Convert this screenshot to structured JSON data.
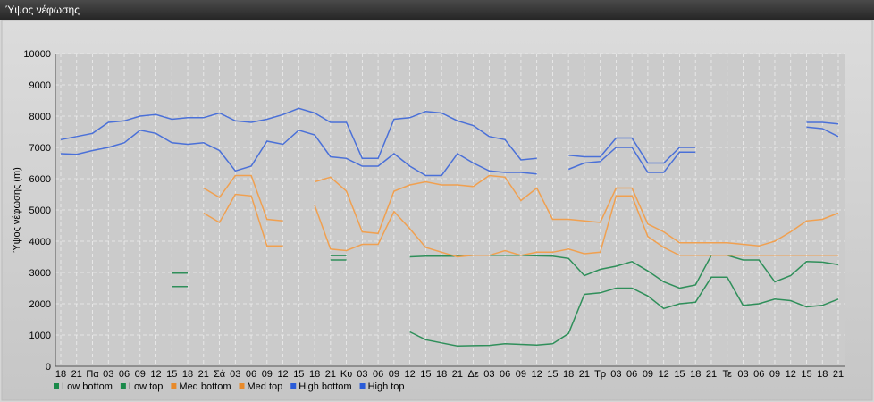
{
  "chart_data": {
    "type": "line",
    "title": "Ύψος νέφωσης",
    "y_label": "Ύψος νέφωσης (m)",
    "categories": [
      "18",
      "21",
      "Πα",
      "03",
      "06",
      "09",
      "12",
      "15",
      "18",
      "21",
      "Σά",
      "03",
      "06",
      "09",
      "12",
      "15",
      "18",
      "21",
      "Κυ",
      "03",
      "06",
      "09",
      "12",
      "15",
      "18",
      "21",
      "Δε",
      "03",
      "06",
      "09",
      "12",
      "15",
      "18",
      "21",
      "Τρ",
      "03",
      "06",
      "09",
      "12",
      "15",
      "18",
      "21",
      "Τε",
      "03",
      "06",
      "09",
      "12",
      "15",
      "18",
      "21"
    ],
    "ylim": [
      0,
      10000
    ],
    "yticks": [
      0,
      1000,
      2000,
      3000,
      4000,
      5000,
      6000,
      7000,
      8000,
      9000,
      10000
    ],
    "grid": true,
    "legend": "bottom",
    "series": [
      {
        "name": "Low bottom",
        "color": "#2f8f5a",
        "values": [
          null,
          null,
          null,
          null,
          null,
          null,
          null,
          2550,
          2550,
          null,
          null,
          null,
          null,
          null,
          null,
          null,
          null,
          3400,
          3400,
          null,
          null,
          null,
          1100,
          850,
          750,
          650,
          660,
          670,
          720,
          700,
          680,
          720,
          1050,
          2300,
          2350,
          2500,
          2500,
          2250,
          1850,
          2000,
          2050,
          2850,
          2850,
          1950,
          2000,
          2150,
          2100,
          1900,
          1950,
          2150
        ]
      },
      {
        "name": "Low top",
        "color": "#2f8f5a",
        "values": [
          null,
          null,
          null,
          null,
          null,
          null,
          null,
          2980,
          2980,
          null,
          null,
          null,
          null,
          null,
          null,
          null,
          null,
          3540,
          3540,
          null,
          null,
          null,
          3500,
          3520,
          3520,
          3520,
          3550,
          3550,
          3550,
          3550,
          3530,
          3520,
          3450,
          2900,
          3100,
          3200,
          3350,
          3050,
          2700,
          2500,
          2600,
          3550,
          3550,
          3400,
          3400,
          2700,
          2900,
          3350,
          3330,
          3250
        ]
      },
      {
        "name": "Med bottom",
        "color": "#f0a050",
        "values": [
          null,
          null,
          null,
          null,
          null,
          null,
          null,
          null,
          null,
          4900,
          4600,
          5500,
          5450,
          3850,
          3850,
          null,
          5150,
          3750,
          3700,
          3900,
          3900,
          4950,
          4400,
          3800,
          3650,
          3500,
          3550,
          3550,
          3700,
          3550,
          3650,
          3650,
          3750,
          3600,
          3650,
          5450,
          5450,
          4150,
          3800,
          3550,
          3550,
          3550,
          3550,
          3550,
          3550,
          3550,
          3550,
          3550,
          3550,
          3550
        ]
      },
      {
        "name": "Med top",
        "color": "#f0a050",
        "values": [
          null,
          null,
          null,
          null,
          null,
          null,
          null,
          null,
          null,
          5700,
          5400,
          6100,
          6100,
          4700,
          4650,
          null,
          5900,
          6050,
          5600,
          4300,
          4250,
          5600,
          5800,
          5900,
          5800,
          5800,
          5750,
          6100,
          6050,
          5300,
          5700,
          4700,
          4700,
          4650,
          4600,
          5700,
          5700,
          4550,
          4300,
          3950,
          3950,
          3950,
          3950,
          3900,
          3850,
          4000,
          4300,
          4650,
          4700,
          4900
        ]
      },
      {
        "name": "High bottom",
        "color": "#4a70d8",
        "values": [
          6800,
          6780,
          6900,
          7000,
          7150,
          7550,
          7450,
          7150,
          7100,
          7150,
          6900,
          6250,
          6400,
          7200,
          7100,
          7550,
          7400,
          6700,
          6650,
          6400,
          6400,
          6800,
          6400,
          6100,
          6100,
          6800,
          6500,
          6250,
          6200,
          6200,
          6150,
          null,
          6300,
          6500,
          6550,
          7000,
          7000,
          6200,
          6200,
          6850,
          6850,
          null,
          null,
          null,
          null,
          null,
          null,
          7650,
          7600,
          7350
        ]
      },
      {
        "name": "High top",
        "color": "#4a70d8",
        "values": [
          7250,
          7350,
          7450,
          7800,
          7850,
          8000,
          8050,
          7900,
          7950,
          7950,
          8100,
          7850,
          7800,
          7900,
          8050,
          8250,
          8100,
          7800,
          7800,
          6650,
          6650,
          7900,
          7950,
          8150,
          8100,
          7850,
          7700,
          7350,
          7250,
          6600,
          6650,
          null,
          6750,
          6700,
          6700,
          7300,
          7300,
          6500,
          6500,
          7000,
          7000,
          null,
          null,
          null,
          null,
          null,
          null,
          7800,
          7800,
          7750
        ]
      }
    ],
    "legend_colors": [
      "#1a8a4a",
      "#1a8a4a",
      "#e88a2a",
      "#e88a2a",
      "#2a5cd8",
      "#2a5cd8"
    ]
  }
}
